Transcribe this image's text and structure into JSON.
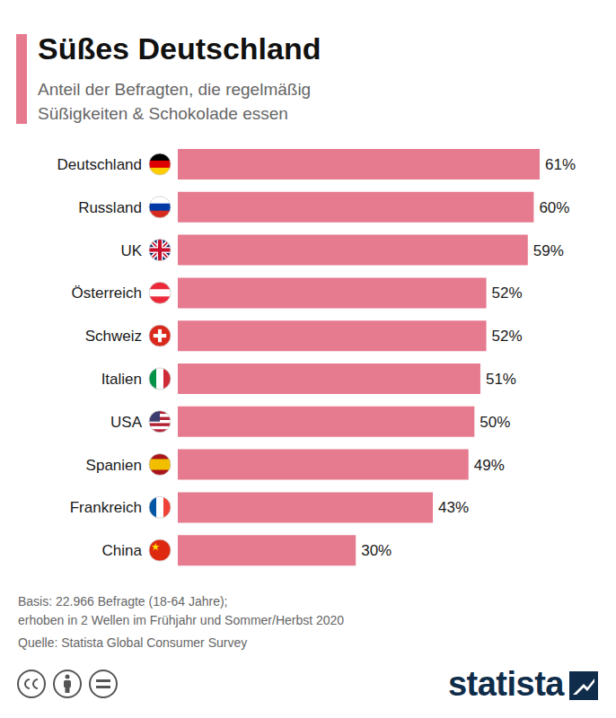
{
  "chart_data": {
    "type": "bar",
    "orientation": "horizontal",
    "title": "Süßes Deutschland",
    "subtitle": "Anteil der Befragten, die regelmäßig Süßigkeiten & Schokolade essen",
    "categories": [
      "Deutschland",
      "Russland",
      "UK",
      "Österreich",
      "Schweiz",
      "Italien",
      "USA",
      "Spanien",
      "Frankreich",
      "China"
    ],
    "values": [
      61,
      60,
      59,
      52,
      52,
      51,
      50,
      49,
      43,
      30
    ],
    "value_labels": [
      "61%",
      "60%",
      "59%",
      "52%",
      "52%",
      "51%",
      "50%",
      "49%",
      "43%",
      "30%"
    ],
    "data_labels": true,
    "color": "#e67a8f",
    "xlim": [
      0,
      61
    ],
    "tick_labels": "y",
    "grid": false,
    "footnotes": [
      "Basis: 22.966 Befragte (18-64 Jahre);",
      "erhoben in 2 Wellen im Frühjahr und Sommer/Herbst 2020"
    ],
    "source": "Quelle: Statista Global Consumer Survey",
    "brand": "statista"
  }
}
